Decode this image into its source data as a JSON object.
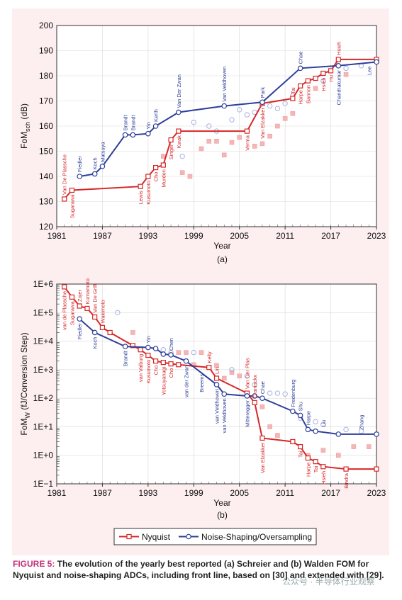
{
  "chart_data": [
    {
      "type": "line",
      "panel_label": "(a)",
      "ylabel": "FoM",
      "ylabel_sub": "sch",
      "ylabel_unit": " (dB)",
      "xlabel": "Year",
      "xlim": [
        1981,
        2023
      ],
      "ylim": [
        120,
        200
      ],
      "x_ticks": [
        "1981",
        "1987",
        "1993",
        "1999",
        "2005",
        "2011",
        "2017",
        "2023"
      ],
      "y_ticks": [
        "120",
        "130",
        "140",
        "150",
        "160",
        "170",
        "180",
        "190",
        "200"
      ],
      "series": [
        {
          "name": "Nyquist",
          "color": "#d62728",
          "x": [
            1982,
            1983,
            1992,
            1993,
            1994,
            1995,
            1996,
            1997,
            2006,
            2008,
            2012,
            2013,
            2014,
            2015,
            2016,
            2017,
            2018,
            2023
          ],
          "y": [
            131,
            134.5,
            136,
            140,
            143.5,
            144.5,
            154.5,
            158,
            158,
            169,
            171,
            176,
            178,
            179,
            181,
            182,
            186.5,
            186.5
          ]
        },
        {
          "name": "Noise-Shaping/Oversampling",
          "color": "#2e3f99",
          "x": [
            1984,
            1986,
            1987,
            1990,
            1991,
            1993,
            1994,
            1997,
            2003,
            2008,
            2013,
            2018,
            2023
          ],
          "y": [
            140,
            141,
            144,
            156.5,
            156.5,
            157,
            160,
            165.5,
            168,
            169.5,
            183,
            184,
            185.5
          ]
        }
      ],
      "faded_nyquist": [
        [
          1995,
          148
        ],
        [
          1997.5,
          141.5
        ],
        [
          1998.5,
          140
        ],
        [
          2000,
          151
        ],
        [
          2001,
          154
        ],
        [
          2002,
          154
        ],
        [
          2003,
          148.5
        ],
        [
          2004,
          153.5
        ],
        [
          2005,
          155.5
        ],
        [
          2007,
          152
        ],
        [
          2008,
          153
        ],
        [
          2009,
          156
        ],
        [
          2010,
          160
        ],
        [
          2011,
          163
        ],
        [
          2012,
          165
        ],
        [
          2015,
          175
        ],
        [
          2019,
          180.5
        ]
      ],
      "faded_ns": [
        [
          1997.5,
          148
        ],
        [
          1999,
          161.5
        ],
        [
          2001,
          160
        ],
        [
          2002,
          158
        ],
        [
          2004,
          162.5
        ],
        [
          2005,
          166.5
        ],
        [
          2006,
          164.5
        ],
        [
          2007,
          165.5
        ],
        [
          2009,
          168
        ],
        [
          2010,
          167
        ],
        [
          2011,
          169
        ],
        [
          2012,
          172
        ],
        [
          2016,
          178
        ],
        [
          2019,
          183
        ],
        [
          2021,
          184
        ]
      ],
      "annotations": [
        {
          "text": "Van De Plassche",
          "x": 1982,
          "y": 131,
          "color": "#d62728"
        },
        {
          "text": "Sugarawa",
          "x": 1983,
          "y": 134.5,
          "color": "#d62728",
          "below": true
        },
        {
          "text": "Fiedler",
          "x": 1984,
          "y": 140,
          "color": "#2e3f99"
        },
        {
          "text": "Koch",
          "x": 1986,
          "y": 141,
          "color": "#2e3f99"
        },
        {
          "text": "Matsuya",
          "x": 1987,
          "y": 144,
          "color": "#2e3f99"
        },
        {
          "text": "Brandt",
          "x": 1990,
          "y": 156.5,
          "color": "#2e3f99"
        },
        {
          "text": "Brandt",
          "x": 1991,
          "y": 156.5,
          "color": "#2e3f99"
        },
        {
          "text": "Yin",
          "x": 1993,
          "y": 157,
          "color": "#2e3f99"
        },
        {
          "text": "Kerth",
          "x": 1994,
          "y": 160,
          "color": "#2e3f99"
        },
        {
          "text": "Van Der Zwan",
          "x": 1997,
          "y": 165.5,
          "color": "#2e3f99"
        },
        {
          "text": "Van Veldhoven",
          "x": 2003,
          "y": 168,
          "color": "#2e3f99"
        },
        {
          "text": "Park",
          "x": 2008,
          "y": 169.5,
          "color": "#2e3f99"
        },
        {
          "text": "Chae",
          "x": 2013,
          "y": 183,
          "color": "#2e3f99"
        },
        {
          "text": "Hsieh",
          "x": 2018,
          "y": 186.5,
          "color": "#d62728"
        },
        {
          "text": "Lewis",
          "x": 1992,
          "y": 136,
          "color": "#d62728",
          "below": true
        },
        {
          "text": "Kusumoto",
          "x": 1993,
          "y": 140,
          "color": "#d62728",
          "below": true
        },
        {
          "text": "Cho",
          "x": 1994,
          "y": 143.5,
          "color": "#d62728",
          "below": true
        },
        {
          "text": "Murden",
          "x": 1995,
          "y": 144.5,
          "color": "#d62728",
          "below": true
        },
        {
          "text": "Singer",
          "x": 1996,
          "y": 154.5,
          "color": "#d62728",
          "below": true
        },
        {
          "text": "Kwak",
          "x": 1997,
          "y": 158,
          "color": "#d62728",
          "below": true
        },
        {
          "text": "Verma",
          "x": 2006,
          "y": 158,
          "color": "#d62728",
          "below": true
        },
        {
          "text": "Van Elzakker",
          "x": 2008,
          "y": 169,
          "color": "#d62728",
          "below": true
        },
        {
          "text": "Tai",
          "x": 2012,
          "y": 171,
          "color": "#d62728"
        },
        {
          "text": "Harpe",
          "x": 2013,
          "y": 176,
          "color": "#d62728",
          "below": true
        },
        {
          "text": "Bannon",
          "x": 2014,
          "y": 178,
          "color": "#d62728",
          "below": true
        },
        {
          "text": "Hsieh",
          "x": 2016,
          "y": 181,
          "color": "#d62728",
          "below": true
        },
        {
          "text": "Hu",
          "x": 2017,
          "y": 182,
          "color": "#d62728",
          "below": true
        },
        {
          "text": "Chandrakumar",
          "x": 2018,
          "y": 184,
          "color": "#2e3f99",
          "below": true
        },
        {
          "text": "Lee",
          "x": 2022,
          "y": 185.5,
          "color": "#2e3f99",
          "below": true
        }
      ]
    },
    {
      "type": "line",
      "panel_label": "(b)",
      "ylabel": "FoM",
      "ylabel_sub": "W",
      "ylabel_unit": " (fJ/Conversion Step)",
      "xlabel": "Year",
      "xlim": [
        1981,
        2023
      ],
      "yscale": "log",
      "ylim_exp": [
        -1,
        6
      ],
      "x_ticks": [
        "1981",
        "1987",
        "1993",
        "1999",
        "2005",
        "2011",
        "2017",
        "2023"
      ],
      "y_ticks": [
        "1E−1",
        "1E+0",
        "1E+1",
        "1E+2",
        "1E+3",
        "1E+4",
        "1E+5",
        "1E+6"
      ],
      "series": [
        {
          "name": "Nyquist",
          "color": "#d62728",
          "x": [
            1982,
            1983,
            1984,
            1985,
            1986,
            1987,
            1988,
            1991,
            1992,
            1993,
            1994,
            1995,
            1996,
            1997,
            2001,
            2002,
            2006,
            2007,
            2008,
            2012,
            2013,
            2014,
            2015,
            2016,
            2019,
            2023
          ],
          "y": [
            800000,
            350000,
            170000,
            140000,
            70000,
            30000,
            20000,
            7000,
            5000,
            3200,
            2000,
            1800,
            1600,
            1500,
            1200,
            500,
            150,
            70,
            4,
            3,
            2,
            0.8,
            0.6,
            0.4,
            0.33,
            0.33
          ]
        },
        {
          "name": "Noise-Shaping/Oversampling",
          "color": "#2e3f99",
          "x": [
            1984,
            1986,
            1990,
            1993,
            1994,
            1995,
            1996,
            1998,
            2002,
            2003,
            2006,
            2007,
            2008,
            2012,
            2013,
            2014,
            2015,
            2018,
            2023
          ],
          "y": [
            60000,
            20000,
            6500,
            6000,
            5500,
            3500,
            3300,
            2000,
            300,
            140,
            120,
            120,
            100,
            35,
            25,
            8,
            7,
            5.5,
            5.5
          ]
        }
      ],
      "faded_nyquist": [
        [
          1991,
          20000
        ],
        [
          1997,
          4000
        ],
        [
          1998,
          4000
        ],
        [
          1999,
          1500
        ],
        [
          2000,
          4000
        ],
        [
          2002,
          1400
        ],
        [
          2003,
          500
        ],
        [
          2004,
          800
        ],
        [
          2005,
          600
        ],
        [
          2008,
          50
        ],
        [
          2009,
          10
        ],
        [
          2010,
          5
        ],
        [
          2014,
          1
        ],
        [
          2016,
          1.5
        ],
        [
          2018,
          1
        ],
        [
          2020,
          2
        ],
        [
          2022,
          2
        ]
      ],
      "faded_ns": [
        [
          1989,
          100000
        ],
        [
          1995,
          5000
        ],
        [
          1996,
          4000
        ],
        [
          1999,
          4000
        ],
        [
          2004,
          1000
        ],
        [
          2006,
          600
        ],
        [
          2007,
          300
        ],
        [
          2009,
          150
        ],
        [
          2010,
          150
        ],
        [
          2011,
          140
        ],
        [
          2013,
          20
        ],
        [
          2015,
          15
        ],
        [
          2016,
          12
        ],
        [
          2019,
          8
        ],
        [
          2021,
          7
        ]
      ],
      "annotations": [
        {
          "text": "van de Plassche",
          "x": 1982,
          "y": 800000,
          "color": "#d62728",
          "below": true
        },
        {
          "text": "Sugarawa",
          "x": 1983,
          "y": 350000,
          "color": "#d62728",
          "below": true
        },
        {
          "text": "Zojer",
          "x": 1984,
          "y": 170000,
          "color": "#d62728"
        },
        {
          "text": "Kumamoto",
          "x": 1985,
          "y": 140000,
          "color": "#d62728"
        },
        {
          "text": "Van De Grift",
          "x": 1986,
          "y": 70000,
          "color": "#d62728"
        },
        {
          "text": "Wakimoto",
          "x": 1987,
          "y": 30000,
          "color": "#d62728"
        },
        {
          "text": "Fiedler",
          "x": 1984,
          "y": 60000,
          "color": "#2e3f99",
          "below": true
        },
        {
          "text": "Koch",
          "x": 1986,
          "y": 20000,
          "color": "#2e3f99",
          "below": true
        },
        {
          "text": "Brandt",
          "x": 1990,
          "y": 6500,
          "color": "#2e3f99",
          "below": true
        },
        {
          "text": "Yin",
          "x": 1993,
          "y": 6000,
          "color": "#2e3f99"
        },
        {
          "text": "Chen",
          "x": 1996,
          "y": 3300,
          "color": "#2e3f99"
        },
        {
          "text": "van Valburg",
          "x": 1992,
          "y": 5000,
          "color": "#d62728",
          "below": true
        },
        {
          "text": "Kusumoto",
          "x": 1993,
          "y": 3200,
          "color": "#d62728",
          "below": true
        },
        {
          "text": "Cho",
          "x": 1994,
          "y": 2000,
          "color": "#d62728",
          "below": true
        },
        {
          "text": "Yotsuyanagi",
          "x": 1995,
          "y": 1800,
          "color": "#d62728",
          "below": true
        },
        {
          "text": "Cho",
          "x": 1996,
          "y": 1600,
          "color": "#d62728",
          "below": true
        },
        {
          "text": "van der Zwan",
          "x": 1998,
          "y": 2000,
          "color": "#2e3f99",
          "below": true
        },
        {
          "text": "Breems",
          "x": 2000,
          "y": 1000,
          "color": "#2e3f99",
          "below": true
        },
        {
          "text": "Kelly",
          "x": 2001,
          "y": 1200,
          "color": "#d62728"
        },
        {
          "text": "Lin",
          "x": 2002,
          "y": 500,
          "color": "#d62728"
        },
        {
          "text": "van Veldhoven",
          "x": 2002,
          "y": 300,
          "color": "#2e3f99",
          "below": true
        },
        {
          "text": "van Veldhoven",
          "x": 2003,
          "y": 140,
          "color": "#2e3f99",
          "below": true
        },
        {
          "text": "Van Der Plas",
          "x": 2006,
          "y": 150,
          "color": "#d62728"
        },
        {
          "text": "Craninckx",
          "x": 2007,
          "y": 70,
          "color": "#d62728"
        },
        {
          "text": "Mitteregger",
          "x": 2006,
          "y": 120,
          "color": "#2e3f99",
          "below": true
        },
        {
          "text": "Chae",
          "x": 2008,
          "y": 100,
          "color": "#2e3f99"
        },
        {
          "text": "Van Elzakker",
          "x": 2008,
          "y": 4,
          "color": "#d62728",
          "below": true
        },
        {
          "text": "Fredenburg",
          "x": 2012,
          "y": 35,
          "color": "#2e3f99"
        },
        {
          "text": "Shu",
          "x": 2013,
          "y": 25,
          "color": "#2e3f99"
        },
        {
          "text": "Harpe",
          "x": 2014,
          "y": 8,
          "color": "#2e3f99"
        },
        {
          "text": "Liu",
          "x": 2016,
          "y": 7,
          "color": "#2e3f99"
        },
        {
          "text": "Zhang",
          "x": 2021,
          "y": 5.5,
          "color": "#2e3f99"
        },
        {
          "text": "Tai",
          "x": 2013,
          "y": 2,
          "color": "#d62728",
          "below": true
        },
        {
          "text": "Harpe",
          "x": 2014,
          "y": 0.8,
          "color": "#d62728",
          "below": true
        },
        {
          "text": "Tai",
          "x": 2015,
          "y": 0.6,
          "color": "#d62728",
          "below": true
        },
        {
          "text": "Hsieh",
          "x": 2016,
          "y": 0.4,
          "color": "#d62728",
          "below": true
        },
        {
          "text": "Bindra",
          "x": 2019,
          "y": 0.33,
          "color": "#d62728",
          "below": true
        }
      ]
    }
  ],
  "legend": {
    "nyquist": "Nyquist",
    "noise_shaping": "Noise-Shaping/Oversampling",
    "position": "bottom-center"
  },
  "caption": {
    "label": "FIGURE 5:",
    "text": " The evolution of the yearly best reported (a) Schreier and (b) Walden FOM for Nyquist and noise-shaping ADCs, including front line, based on [30] and extended with [29]."
  },
  "watermark": "公众号 · 半导体行业观察",
  "colors": {
    "nyquist": "#d62728",
    "noise_shaping": "#2e3f99",
    "panel": "#fdeef0",
    "caption_label": "#c0327a"
  }
}
